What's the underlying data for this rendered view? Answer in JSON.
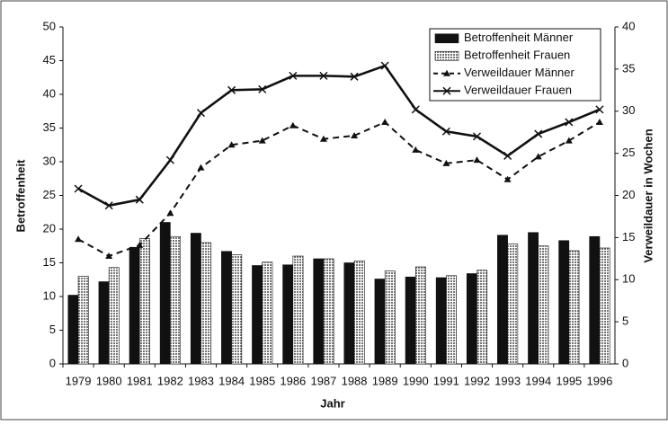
{
  "chart_data": {
    "type": "bar",
    "categories": [
      "1979",
      "1980",
      "1981",
      "1982",
      "1983",
      "1984",
      "1985",
      "1986",
      "1987",
      "1988",
      "1989",
      "1990",
      "1991",
      "1992",
      "1993",
      "1994",
      "1995",
      "1996"
    ],
    "series": [
      {
        "name": "Betroffenheit Männer",
        "type": "bar",
        "color": "#111111",
        "pattern": "solid",
        "values": [
          10.2,
          12.2,
          17.3,
          21,
          19.4,
          16.7,
          14.6,
          14.7,
          15.6,
          15,
          12.6,
          12.9,
          12.8,
          13.4,
          19.1,
          19.5,
          18.3,
          18.9
        ]
      },
      {
        "name": "Betroffenheit Frauen",
        "type": "bar",
        "color": "#777777",
        "pattern": "hatch",
        "values": [
          13,
          14.3,
          18.6,
          18.9,
          18,
          16.2,
          15.1,
          16,
          15.6,
          15.3,
          13.8,
          14.4,
          13.1,
          13.9,
          17.8,
          17.5,
          16.8,
          17.2
        ]
      },
      {
        "name": "Verweildauer Männer",
        "type": "line",
        "axis": "y2",
        "color": "#111111",
        "dash": true,
        "marker": "triangle",
        "values": [
          14.8,
          12.8,
          14.1,
          17.9,
          23.3,
          26,
          26.5,
          28.3,
          26.7,
          27.1,
          28.7,
          25.4,
          23.8,
          24.2,
          21.9,
          24.6,
          26.5,
          28.7
        ]
      },
      {
        "name": "Verweildauer Frauen",
        "type": "line",
        "axis": "y2",
        "color": "#111111",
        "dash": false,
        "marker": "x",
        "values": [
          20.8,
          18.8,
          19.5,
          24.2,
          29.8,
          32.5,
          32.6,
          34.2,
          34.2,
          34.1,
          35.4,
          30.2,
          27.6,
          27,
          24.7,
          27.3,
          28.7,
          30.2
        ]
      }
    ],
    "xlabel": "Jahr",
    "ylabel": "Betroffenheit",
    "y2label": "Verweildauer in Wochen",
    "ylim": [
      0,
      50
    ],
    "yticks": [
      0,
      5,
      10,
      15,
      20,
      25,
      30,
      35,
      40,
      45,
      50
    ],
    "y2lim": [
      0,
      40
    ],
    "y2ticks": [
      0,
      5,
      10,
      15,
      20,
      25,
      30,
      35,
      40
    ],
    "legend": "upper right"
  }
}
